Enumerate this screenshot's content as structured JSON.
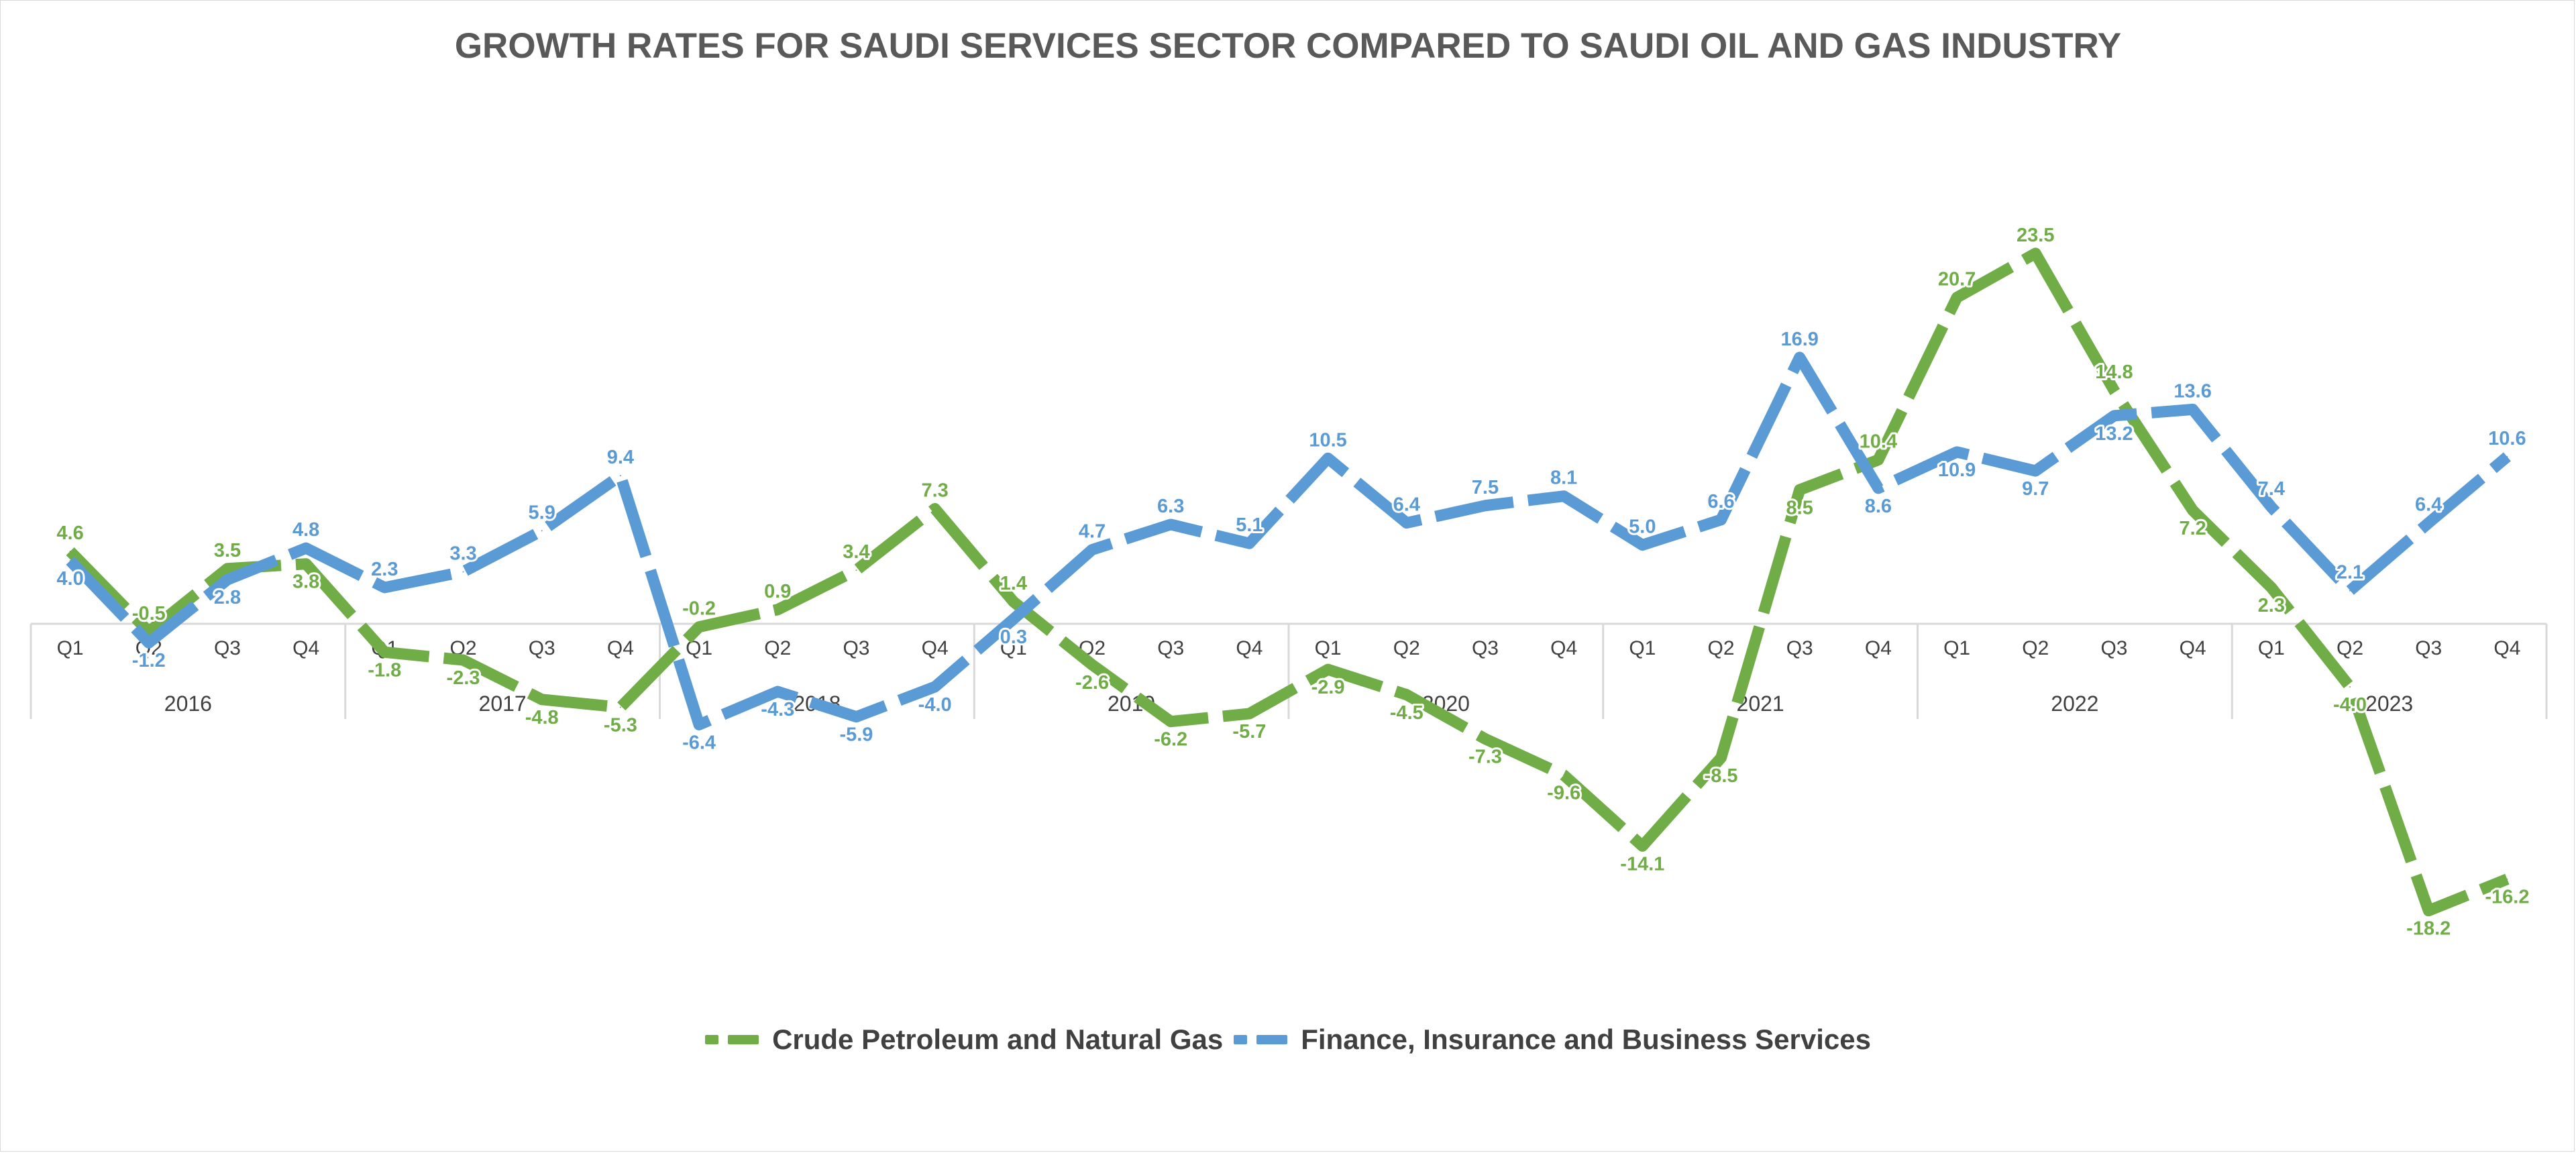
{
  "title": "GROWTH RATES FOR SAUDI SERVICES SECTOR COMPARED TO SAUDI OIL AND GAS INDUSTRY",
  "chart_data": {
    "type": "line",
    "title": "GROWTH RATES FOR SAUDI SERVICES SECTOR COMPARED TO SAUDI OIL AND GAS INDUSTRY",
    "xlabel": "",
    "ylabel": "",
    "ylim": [
      -20,
      25
    ],
    "grid": false,
    "legend_position": "bottom",
    "years": [
      "2016",
      "2017",
      "2018",
      "2019",
      "2020",
      "2021",
      "2022",
      "2023"
    ],
    "quarters": [
      "Q1",
      "Q2",
      "Q3",
      "Q4"
    ],
    "categories": [
      "2016 Q1",
      "2016 Q2",
      "2016 Q3",
      "2016 Q4",
      "2017 Q1",
      "2017 Q2",
      "2017 Q3",
      "2017 Q4",
      "2018 Q1",
      "2018 Q2",
      "2018 Q3",
      "2018 Q4",
      "2019 Q1",
      "2019 Q2",
      "2019 Q3",
      "2019 Q4",
      "2020 Q1",
      "2020 Q2",
      "2020 Q3",
      "2020 Q4",
      "2021 Q1",
      "2021 Q2",
      "2021 Q3",
      "2021 Q4",
      "2022 Q1",
      "2022 Q2",
      "2022 Q3",
      "2022 Q4",
      "2023 Q1",
      "2023 Q2",
      "2023 Q3",
      "2023 Q4"
    ],
    "series": [
      {
        "name": "Crude Petroleum and Natural Gas",
        "color": "#70ad47",
        "values": [
          4.6,
          -0.5,
          3.5,
          3.8,
          -1.8,
          -2.3,
          -4.8,
          -5.3,
          -0.2,
          0.9,
          3.4,
          7.3,
          1.4,
          -2.6,
          -6.2,
          -5.7,
          -2.9,
          -4.5,
          -7.3,
          -9.6,
          -14.1,
          -8.5,
          8.5,
          10.4,
          20.7,
          23.5,
          14.8,
          7.2,
          2.3,
          -4.0,
          -18.2,
          -16.2
        ],
        "labels": [
          "4.6",
          "-0.5",
          "3.5",
          "3.8",
          "-1.8",
          "-2.3",
          "-4.8",
          "-5.3",
          "-0.2",
          "0.9",
          "3.4",
          "7.3",
          "1.4",
          "-2.6",
          "-6.2",
          "-5.7",
          "-2.9",
          "-4.5",
          "-7.3",
          "-9.6",
          "-14.1",
          "-8.5",
          "8.5",
          "10.4",
          "20.7",
          "23.5",
          "14.8",
          "7.2",
          "2.3",
          "-4.0",
          "-18.2",
          "-16.2"
        ]
      },
      {
        "name": "Finance, Insurance and Business Services",
        "color": "#5b9bd5",
        "values": [
          4.0,
          -1.2,
          2.8,
          4.8,
          2.3,
          3.3,
          5.9,
          9.4,
          -6.4,
          -4.3,
          -5.9,
          -4.0,
          0.3,
          4.7,
          6.3,
          5.1,
          10.5,
          6.4,
          7.5,
          8.1,
          5.0,
          6.6,
          16.9,
          8.6,
          10.9,
          9.7,
          13.2,
          13.6,
          7.4,
          2.1,
          6.4,
          10.6
        ],
        "labels": [
          "4.0",
          "-1.2",
          "2.8",
          "4.8",
          "2.3",
          "3.3",
          "5.9",
          "9.4",
          "-6.4",
          "-4.3",
          "-5.9",
          "-4.0",
          "0.3",
          "4.7",
          "6.3",
          "5.1",
          "10.5",
          "6.4",
          "7.5",
          "8.1",
          "5.0",
          "6.6",
          "16.9",
          "8.6",
          "10.9",
          "9.7",
          "13.2",
          "13.6",
          "7.4",
          "2.1",
          "6.4",
          "10.6"
        ]
      }
    ]
  }
}
